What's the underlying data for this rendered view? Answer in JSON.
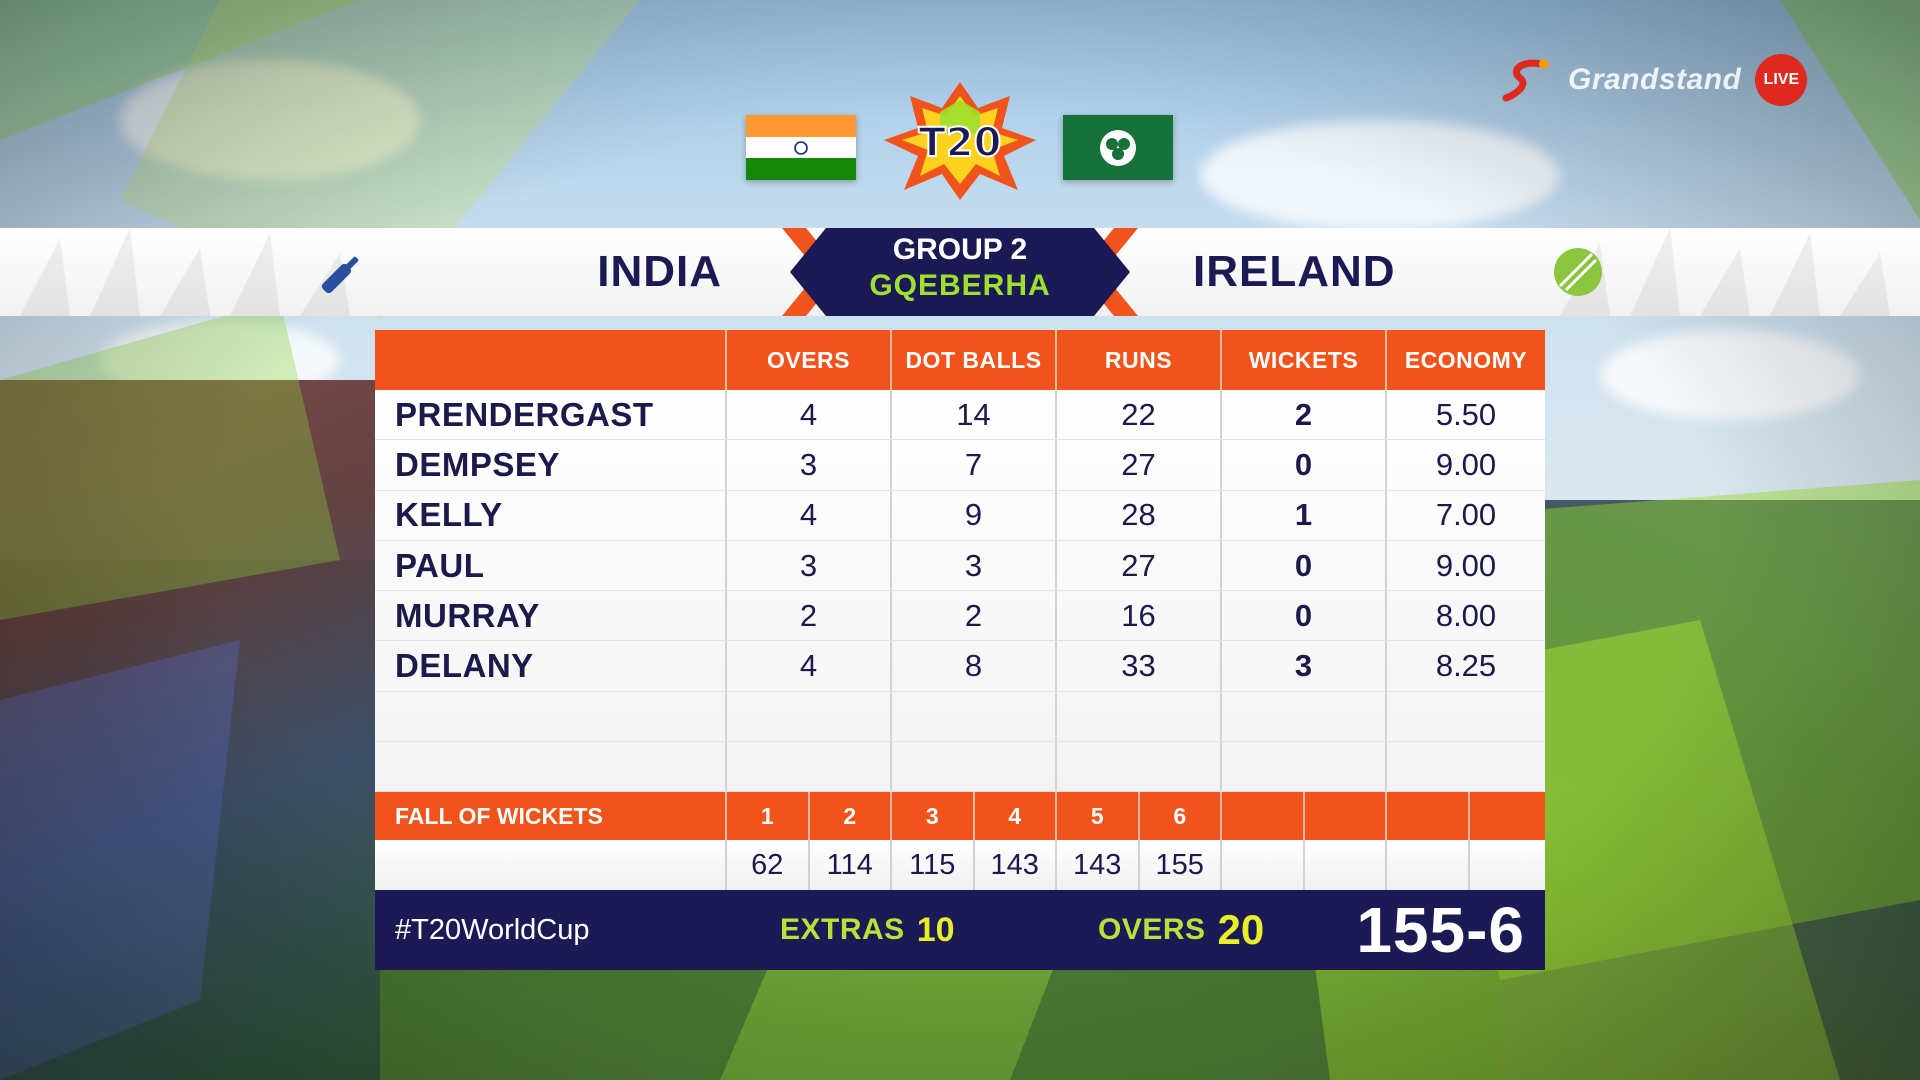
{
  "broadcaster": {
    "name": "Grandstand",
    "live_label": "LIVE"
  },
  "event_logo_text": "T20",
  "header": {
    "team_batting": "INDIA",
    "team_bowling": "IRELAND",
    "group": "GROUP 2",
    "venue": "GQEBERHA"
  },
  "table": {
    "columns": [
      "OVERS",
      "DOT BALLS",
      "RUNS",
      "WICKETS",
      "ECONOMY"
    ],
    "rows": [
      {
        "name": "PRENDERGAST",
        "overs": "4",
        "dots": "14",
        "runs": "22",
        "wickets": "2",
        "economy": "5.50"
      },
      {
        "name": "DEMPSEY",
        "overs": "3",
        "dots": "7",
        "runs": "27",
        "wickets": "0",
        "economy": "9.00"
      },
      {
        "name": "KELLY",
        "overs": "4",
        "dots": "9",
        "runs": "28",
        "wickets": "1",
        "economy": "7.00"
      },
      {
        "name": "PAUL",
        "overs": "3",
        "dots": "3",
        "runs": "27",
        "wickets": "0",
        "economy": "9.00"
      },
      {
        "name": "MURRAY",
        "overs": "2",
        "dots": "2",
        "runs": "16",
        "wickets": "0",
        "economy": "8.00"
      },
      {
        "name": "DELANY",
        "overs": "4",
        "dots": "8",
        "runs": "33",
        "wickets": "3",
        "economy": "8.25"
      },
      {
        "name": "",
        "overs": "",
        "dots": "",
        "runs": "",
        "wickets": "",
        "economy": ""
      },
      {
        "name": "",
        "overs": "",
        "dots": "",
        "runs": "",
        "wickets": "",
        "economy": ""
      }
    ]
  },
  "fall_of_wickets": {
    "label": "FALL OF WICKETS",
    "numbers": [
      "1",
      "2",
      "3",
      "4",
      "5",
      "6",
      "",
      "",
      "",
      ""
    ],
    "scores": [
      "62",
      "114",
      "115",
      "143",
      "143",
      "155",
      "",
      "",
      "",
      ""
    ]
  },
  "footer": {
    "hashtag": "#T20WorldCup",
    "extras_label": "EXTRAS",
    "extras_value": "10",
    "overs_label": "OVERS",
    "overs_value": "20",
    "score": "155-6"
  },
  "colors": {
    "accent_orange": "#f0531c",
    "navy": "#1c1a55",
    "lime": "#9ee02e",
    "ireland_green": "#17713a"
  }
}
